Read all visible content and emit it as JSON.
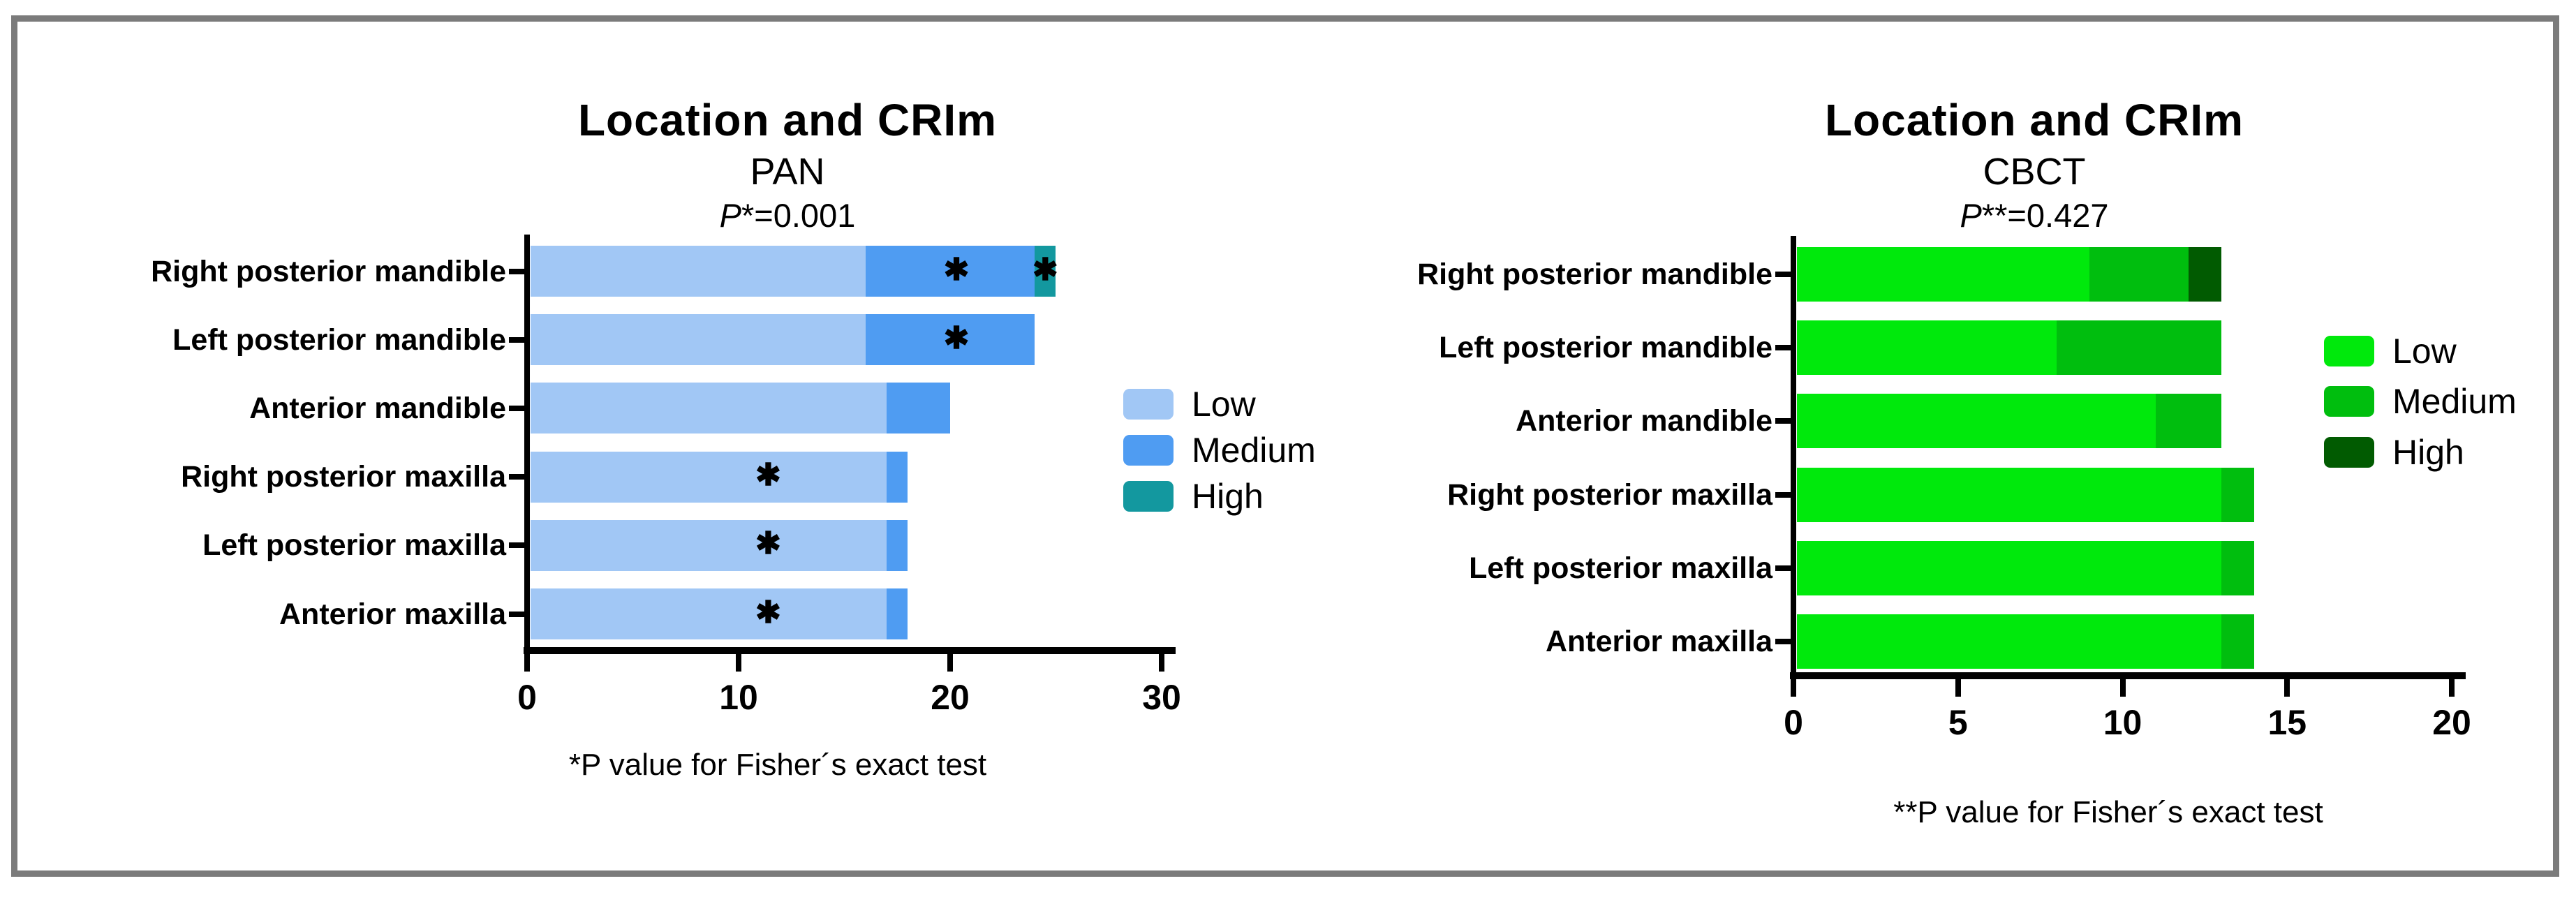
{
  "figure": {
    "background": "#ffffff",
    "frame_color": "#7b7b7b",
    "text_color": "#000000",
    "star_glyph": "✱"
  },
  "chart_data": [
    {
      "type": "bar",
      "orientation": "horizontal",
      "stacked": true,
      "title": "Location and CRIm",
      "subtitle": "PAN",
      "p_value": {
        "italic": "P",
        "rest": "*=0.001"
      },
      "footnote": "*P value for Fisher´s exact test",
      "categories": [
        "Right posterior mandible",
        "Left posterior mandible",
        "Anterior mandible",
        "Right posterior maxilla",
        "Left posterior maxilla",
        "Anterior maxilla"
      ],
      "series": [
        {
          "name": "Low",
          "color": "#A1C7F5",
          "values": [
            16,
            16,
            17,
            17,
            17,
            17
          ]
        },
        {
          "name": "Medium",
          "color": "#4F9CF2",
          "values": [
            8,
            8,
            3,
            1,
            1,
            1
          ]
        },
        {
          "name": "High",
          "color": "#13989F",
          "values": [
            1,
            0,
            0,
            0,
            0,
            0
          ]
        }
      ],
      "xlim": [
        0,
        30
      ],
      "xticks": [
        0,
        10,
        20,
        30
      ],
      "grid": false,
      "legend_position": "right",
      "significance_marks": [
        {
          "row": 0,
          "x": 20.3
        },
        {
          "row": 0,
          "x": 24.5
        },
        {
          "row": 1,
          "x": 20.3
        },
        {
          "row": 3,
          "x": 11.4
        },
        {
          "row": 4,
          "x": 11.4
        },
        {
          "row": 5,
          "x": 11.4
        }
      ]
    },
    {
      "type": "bar",
      "orientation": "horizontal",
      "stacked": true,
      "title": "Location and CRIm",
      "subtitle": "CBCT",
      "p_value": {
        "italic": "P",
        "rest": "**=0.427"
      },
      "footnote": "**P value for Fisher´s exact test",
      "categories": [
        "Right posterior mandible",
        "Left posterior mandible",
        "Anterior mandible",
        "Right posterior maxilla",
        "Left posterior maxilla",
        "Anterior maxilla"
      ],
      "series": [
        {
          "name": "Low",
          "color": "#00E90C",
          "values": [
            9,
            8,
            11,
            13,
            13,
            13
          ]
        },
        {
          "name": "Medium",
          "color": "#00BE0E",
          "values": [
            3,
            5,
            2,
            1,
            1,
            1
          ]
        },
        {
          "name": "High",
          "color": "#015B01",
          "values": [
            1,
            0,
            0,
            0,
            0,
            0
          ]
        }
      ],
      "xlim": [
        0,
        20
      ],
      "xticks": [
        0,
        5,
        10,
        15,
        20
      ],
      "grid": false,
      "legend_position": "right",
      "significance_marks": []
    }
  ]
}
